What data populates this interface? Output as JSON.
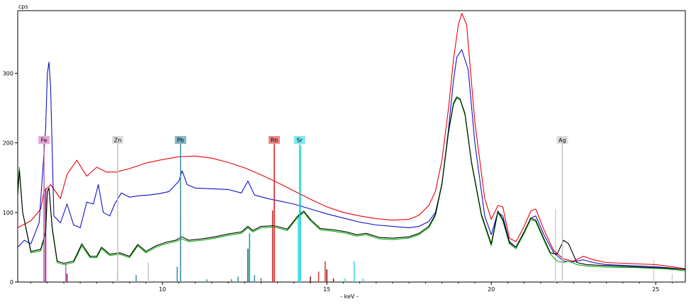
{
  "chart_data": {
    "type": "line",
    "title": "",
    "ylabel": "cps",
    "xlabel": "- keV -",
    "xlim": [
      5.6,
      25.9
    ],
    "ylim": [
      0,
      390
    ],
    "x_ticks": [
      10,
      15,
      20,
      25
    ],
    "y_ticks": [
      0,
      100,
      200,
      300
    ],
    "grid": false,
    "legend": "none",
    "series": [
      {
        "color": "#e8000b",
        "x": [
          5.6,
          6.0,
          6.3,
          6.4,
          6.6,
          6.9,
          7.1,
          7.4,
          7.7,
          8.0,
          8.3,
          8.6,
          9.0,
          9.5,
          10.0,
          10.5,
          11.0,
          11.5,
          12.0,
          12.5,
          13.0,
          13.5,
          14.0,
          14.5,
          15.0,
          15.5,
          16.0,
          16.5,
          17.0,
          17.5,
          17.8,
          18.1,
          18.3,
          18.5,
          18.7,
          18.85,
          19.0,
          19.1,
          19.25,
          19.5,
          19.8,
          20.0,
          20.2,
          20.35,
          20.55,
          20.75,
          21.0,
          21.2,
          21.35,
          21.6,
          21.9,
          22.2,
          22.5,
          22.8,
          23.1,
          23.5,
          24.0,
          24.5,
          25.0,
          25.5,
          25.9
        ],
        "y": [
          78,
          88,
          105,
          130,
          140,
          120,
          155,
          175,
          152,
          165,
          158,
          158,
          163,
          171,
          176,
          180,
          181,
          178,
          172,
          164,
          154,
          143,
          131,
          119,
          108,
          100,
          95,
          91,
          89,
          90,
          96,
          110,
          130,
          175,
          250,
          320,
          370,
          386,
          370,
          230,
          120,
          90,
          110,
          108,
          63,
          58,
          80,
          102,
          105,
          75,
          45,
          33,
          30,
          37,
          32,
          28,
          27,
          26,
          25,
          22,
          19
        ]
      },
      {
        "color": "#1010c8",
        "x": [
          5.6,
          5.8,
          6.0,
          6.25,
          6.45,
          6.5,
          6.55,
          6.6,
          6.7,
          6.9,
          7.1,
          7.3,
          7.5,
          7.7,
          7.9,
          8.05,
          8.2,
          8.4,
          8.55,
          8.75,
          9.0,
          9.3,
          9.6,
          9.9,
          10.2,
          10.5,
          10.6,
          10.75,
          11.0,
          11.5,
          12.0,
          12.4,
          12.6,
          12.8,
          13.2,
          13.6,
          14.0,
          14.5,
          15.0,
          15.5,
          16.0,
          16.5,
          17.0,
          17.5,
          17.8,
          18.1,
          18.3,
          18.5,
          18.7,
          18.85,
          18.95,
          19.1,
          19.3,
          19.5,
          19.8,
          20.0,
          20.2,
          20.35,
          20.55,
          20.75,
          21.0,
          21.2,
          21.35,
          21.6,
          21.9,
          22.2,
          22.5,
          22.8,
          23.1,
          23.5,
          24.0,
          24.5,
          25.0,
          25.5,
          25.9
        ],
        "y": [
          50,
          60,
          55,
          85,
          220,
          300,
          316,
          280,
          95,
          85,
          112,
          82,
          78,
          115,
          112,
          140,
          100,
          95,
          112,
          128,
          122,
          124,
          125,
          127,
          130,
          145,
          160,
          140,
          135,
          134,
          133,
          128,
          145,
          125,
          120,
          116,
          112,
          105,
          98,
          92,
          86,
          82,
          80,
          78,
          80,
          87,
          100,
          140,
          220,
          290,
          323,
          334,
          305,
          200,
          95,
          68,
          100,
          95,
          58,
          50,
          72,
          92,
          95,
          68,
          42,
          30,
          29,
          32,
          28,
          25,
          24,
          23,
          22,
          20,
          18
        ]
      },
      {
        "color": "#00b400",
        "x": [
          5.6,
          5.65,
          5.75,
          6.0,
          6.3,
          6.45,
          6.5,
          6.55,
          6.65,
          6.8,
          7.0,
          7.3,
          7.55,
          7.8,
          8.0,
          8.15,
          8.4,
          8.7,
          9.0,
          9.25,
          9.5,
          9.8,
          10.1,
          10.4,
          10.6,
          10.8,
          11.2,
          11.6,
          12.0,
          12.4,
          12.6,
          12.75,
          13.0,
          13.4,
          13.8,
          14.1,
          14.3,
          14.5,
          14.8,
          15.2,
          15.6,
          15.9,
          16.2,
          16.6,
          17.0,
          17.5,
          17.8,
          18.1,
          18.3,
          18.5,
          18.7,
          18.85,
          18.95,
          19.05,
          19.2,
          19.4,
          19.7,
          20.0,
          20.2,
          20.35,
          20.55,
          20.75,
          21.0,
          21.2,
          21.35,
          21.6,
          21.8,
          22.0,
          22.2,
          22.35,
          22.6,
          22.9,
          23.3,
          23.8,
          24.3,
          24.8,
          25.3,
          25.9
        ],
        "y": [
          125,
          165,
          100,
          42,
          45,
          70,
          130,
          135,
          75,
          28,
          25,
          28,
          52,
          35,
          35,
          48,
          38,
          40,
          35,
          52,
          42,
          50,
          55,
          58,
          62,
          58,
          60,
          63,
          67,
          70,
          78,
          72,
          78,
          79,
          74,
          92,
          100,
          88,
          75,
          73,
          70,
          66,
          68,
          62,
          61,
          63,
          68,
          78,
          95,
          140,
          215,
          255,
          264,
          262,
          240,
          170,
          95,
          52,
          100,
          88,
          55,
          48,
          70,
          90,
          87,
          60,
          40,
          30,
          28,
          30,
          25,
          23,
          22,
          21,
          21,
          20,
          19,
          16
        ]
      },
      {
        "color": "#000000",
        "x": [
          5.6,
          5.65,
          5.75,
          6.0,
          6.3,
          6.45,
          6.5,
          6.55,
          6.65,
          6.8,
          7.0,
          7.3,
          7.55,
          7.8,
          8.0,
          8.15,
          8.4,
          8.7,
          9.0,
          9.25,
          9.5,
          9.8,
          10.1,
          10.4,
          10.6,
          10.8,
          11.2,
          11.6,
          12.0,
          12.4,
          12.6,
          12.75,
          13.0,
          13.4,
          13.8,
          14.1,
          14.3,
          14.5,
          14.8,
          15.2,
          15.6,
          15.9,
          16.2,
          16.6,
          17.0,
          17.5,
          17.8,
          18.1,
          18.3,
          18.5,
          18.7,
          18.85,
          18.95,
          19.05,
          19.2,
          19.4,
          19.7,
          20.0,
          20.2,
          20.35,
          20.55,
          20.75,
          21.0,
          21.2,
          21.35,
          21.6,
          21.8,
          22.0,
          22.2,
          22.35,
          22.6,
          22.9,
          23.3,
          23.8,
          24.3,
          24.8,
          25.3,
          25.9
        ],
        "y": [
          125,
          160,
          100,
          44,
          47,
          72,
          130,
          135,
          78,
          30,
          27,
          30,
          55,
          37,
          37,
          50,
          40,
          42,
          37,
          54,
          44,
          52,
          57,
          60,
          65,
          60,
          62,
          65,
          69,
          72,
          80,
          74,
          80,
          81,
          76,
          94,
          102,
          90,
          77,
          75,
          72,
          68,
          70,
          64,
          63,
          65,
          70,
          80,
          97,
          142,
          217,
          257,
          266,
          263,
          242,
          172,
          97,
          55,
          102,
          90,
          57,
          50,
          72,
          92,
          89,
          62,
          42,
          40,
          60,
          55,
          28,
          25,
          24,
          23,
          22,
          21,
          20,
          18
        ]
      }
    ],
    "element_markers": [
      {
        "label": "Fe",
        "kev": 6.4,
        "color": "#c060b0",
        "tag_color": "#e8a8d8"
      },
      {
        "label": "Zn",
        "kev": 8.64,
        "color": "#c0c0c0",
        "tag_color": "#dddddd"
      },
      {
        "label": "Pb",
        "kev": 10.55,
        "color": "#3a8ea0",
        "tag_color": "#80b8c4"
      },
      {
        "label": "Rb",
        "kev": 13.4,
        "color": "#e03030",
        "tag_color": "#f08888"
      },
      {
        "label": "Sr",
        "kev": 14.17,
        "color": "#30d8e0",
        "tag_color": "#80e8f0"
      },
      {
        "label": "Ag",
        "kev": 22.16,
        "color": "#c0c0c0",
        "tag_color": "#dddddd"
      }
    ],
    "minor_lines": [
      {
        "kev": 6.45,
        "height": 135,
        "color": "#a0007a"
      },
      {
        "kev": 6.4,
        "height": 130,
        "color": "#c060b0"
      },
      {
        "kev": 7.06,
        "height": 25,
        "color": "#c060b0"
      },
      {
        "kev": 7.1,
        "height": 12,
        "color": "#a0007a"
      },
      {
        "kev": 8.64,
        "height": 12,
        "color": "#c8c8c8"
      },
      {
        "kev": 9.57,
        "height": 28,
        "color": "#c8c8c8"
      },
      {
        "kev": 9.2,
        "height": 10,
        "color": "#3a8ea0"
      },
      {
        "kev": 10.45,
        "height": 22,
        "color": "#3a8ea0"
      },
      {
        "kev": 10.55,
        "height": 92,
        "color": "#1a6a80"
      },
      {
        "kev": 11.35,
        "height": 4,
        "color": "#3a8ea0"
      },
      {
        "kev": 12.1,
        "height": 4,
        "color": "#3a8ea0"
      },
      {
        "kev": 12.3,
        "height": 8,
        "color": "#3a8ea0"
      },
      {
        "kev": 12.6,
        "height": 48,
        "color": "#006060"
      },
      {
        "kev": 12.65,
        "height": 70,
        "color": "#00a0a0"
      },
      {
        "kev": 12.8,
        "height": 10,
        "color": "#3a8ea0"
      },
      {
        "kev": 13.0,
        "height": 6,
        "color": "#3a8ea0"
      },
      {
        "kev": 13.35,
        "height": 103,
        "color": "#c02020"
      },
      {
        "kev": 13.4,
        "height": 196,
        "color": "#e03030"
      },
      {
        "kev": 14.13,
        "height": 98,
        "color": "#30d8e0"
      },
      {
        "kev": 14.2,
        "height": 196,
        "color": "#30d8e0"
      },
      {
        "kev": 14.5,
        "height": 8,
        "color": "#8a1010"
      },
      {
        "kev": 14.75,
        "height": 15,
        "color": "#e03030"
      },
      {
        "kev": 14.95,
        "height": 30,
        "color": "#e03030"
      },
      {
        "kev": 15.0,
        "height": 18,
        "color": "#a00000"
      },
      {
        "kev": 15.2,
        "height": 5,
        "color": "#a00000"
      },
      {
        "kev": 15.55,
        "height": 5,
        "color": "#30d8e0"
      },
      {
        "kev": 15.83,
        "height": 30,
        "color": "#30d8e0"
      },
      {
        "kev": 16.1,
        "height": 5,
        "color": "#30d8e0"
      },
      {
        "kev": 21.95,
        "height": 105,
        "color": "#d0d0d0"
      },
      {
        "kev": 24.94,
        "height": 32,
        "color": "#d0d0d0"
      },
      {
        "kev": 25.5,
        "height": 12,
        "color": "#d0d0d0"
      }
    ]
  }
}
